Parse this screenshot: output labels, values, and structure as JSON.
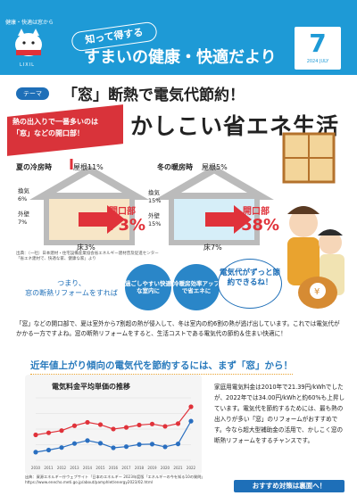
{
  "header": {
    "brand_tag": "健康・快適は窓から",
    "logo_text": "LIXIL",
    "subtitle": "知って得する",
    "title": "すまいの健康・快適だより",
    "issue_number": "7",
    "issue_date": "2024 JULY"
  },
  "theme": {
    "tag": "テーマ",
    "headline": "「窓」断熱で電気代節約！"
  },
  "banner": {
    "line1": "熱の出入りで一番多いのは",
    "line2": "「窓」などの開口部！",
    "big_title": "かしこい省エネ生活"
  },
  "summer": {
    "label": "夏の冷房時",
    "roof_label": "屋根",
    "roof_pct": "11%",
    "vent_label": "換気",
    "vent_pct": "6%",
    "wall_label": "外壁",
    "wall_pct": "7%",
    "floor_label": "床",
    "floor_pct": "3%",
    "opening_label": "開口部",
    "opening_pct": "73%"
  },
  "winter": {
    "label": "冬の暖房時",
    "roof_label": "屋根",
    "roof_pct": "5%",
    "vent_label": "換気",
    "vent_pct": "15%",
    "wall_label": "外壁",
    "wall_pct": "15%",
    "floor_label": "床",
    "floor_pct": "7%",
    "opening_label": "開口部",
    "opening_pct": "58%"
  },
  "source1": {
    "line1": "出典：（一社）日本建材・住宅設備産業協会省エネルギー建材普及促進センター",
    "line2": "「省エネ建材で、快適な家、健康な家」より"
  },
  "reform": {
    "line1": "つまり、",
    "line2": "窓の断熱リフォームをすれば",
    "bubble1": "過ごしやすい快適な室内に",
    "bubble2": "冷暖房効率アップで省エネに",
    "bubble3": "電気代がずっと節約できるね！"
  },
  "paragraph": "「窓」などの開口部で、夏は室外から7割超の熱が侵入して、冬は室内の約6割の熱が逃げ出しています。これでは電気代がかかる一方ですよね。窓の断熱リフォームをすると、生活コストである電気代の節約＆住まい快適に！",
  "section2": {
    "title": "近年値上がり傾向の電気代を節約するには、まず「窓」から！",
    "chart_title": "電気料金平均単価の推移",
    "right_text": "家庭用電気料金は2010年で21.39円/kWhでしたが、2022年では34.00円/kWhと約60%も上昇しています。電気代を節約するためには、最も熱の出入りが多い「窓」のリフォームがおすすめです。今なら超大型補助金の活用で、かしこく窓の断熱リフォームをするチャンスです。",
    "source_line1": "出典：資源エネルギー庁ウェブサイト「日本のエネルギー 2023年度版「エネルギーの今を知る10の質問」",
    "source_line2": "https://www.enecho.meti.go.jp/about/pamphlet/energy2023/02.html",
    "cta": "おすすめ対策は裏面へ！"
  },
  "chart_data": {
    "type": "line",
    "title": "電気料金平均単価の推移",
    "categories": [
      "2010",
      "2011",
      "2012",
      "2013",
      "2014",
      "2015",
      "2016",
      "2017",
      "2018",
      "2019",
      "2020",
      "2021",
      "2022"
    ],
    "series": [
      {
        "name": "",
        "values": [
          21.39,
          22.33,
          23.33,
          25.51,
          27.03,
          25.99,
          24.02,
          24.76,
          25.82,
          26.27,
          25.23,
          26.46,
          34.0
        ],
        "color": "#e0323a"
      },
      {
        "name": "",
        "values": [
          13.65,
          14.59,
          15.73,
          17.53,
          18.86,
          17.65,
          15.59,
          16.13,
          17.1,
          17.25,
          16.03,
          17.36,
          27.55
        ],
        "color": "#2a6fc0"
      }
    ],
    "ylim": [
      10,
      38
    ],
    "grid": true
  },
  "colors": {
    "header_blue": "#1e9ad6",
    "accent_red": "#e0323a",
    "accent_blue": "#1e6fb8"
  }
}
